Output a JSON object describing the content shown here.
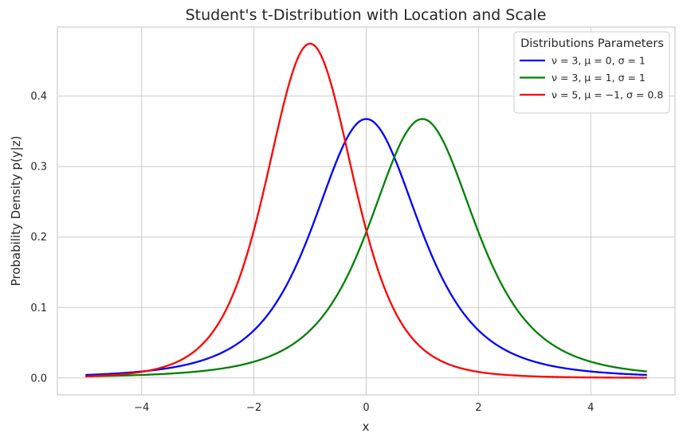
{
  "chart_data": {
    "type": "line",
    "title": "Student's t-Distribution with Location and Scale",
    "xlabel": "x",
    "ylabel": "Probability Density p(y|z)",
    "xlim": [
      -5.5,
      5.5
    ],
    "ylim": [
      -0.024,
      0.498
    ],
    "xticks": [
      -4,
      -2,
      0,
      2,
      4
    ],
    "xtick_labels": [
      "−4",
      "−2",
      "0",
      "2",
      "4"
    ],
    "yticks": [
      0.0,
      0.1,
      0.2,
      0.3,
      0.4
    ],
    "ytick_labels": [
      "0.0",
      "0.1",
      "0.2",
      "0.3",
      "0.4"
    ],
    "grid": true,
    "legend": {
      "title": "Distributions Parameters",
      "placement": "top-right"
    },
    "series": [
      {
        "name": "ν = 3, μ = 0, σ = 1",
        "color": "#0000ff",
        "nu": 3,
        "mu": 0,
        "sigma": 1,
        "x": [
          -5,
          -4,
          -3,
          -2.5,
          -2,
          -1.5,
          -1,
          -0.5,
          0,
          0.5,
          1,
          1.5,
          2,
          2.5,
          3,
          4,
          5
        ],
        "y": [
          0.0042,
          0.0092,
          0.023,
          0.0382,
          0.0675,
          0.1274,
          0.2067,
          0.3215,
          0.3676,
          0.3215,
          0.2067,
          0.1274,
          0.0675,
          0.0382,
          0.023,
          0.0092,
          0.0042
        ]
      },
      {
        "name": "ν = 3, μ = 1, σ = 1",
        "color": "#008000",
        "nu": 3,
        "mu": 1,
        "sigma": 1,
        "x": [
          -5,
          -4,
          -3,
          -2,
          -1.5,
          -1,
          -0.5,
          0,
          0.5,
          1,
          1.5,
          2,
          2.5,
          3,
          3.5,
          4,
          5
        ],
        "y": [
          0.0027,
          0.0042,
          0.0092,
          0.023,
          0.0382,
          0.0675,
          0.1274,
          0.2067,
          0.3215,
          0.3676,
          0.3215,
          0.2067,
          0.1274,
          0.0675,
          0.0382,
          0.023,
          0.0092
        ]
      },
      {
        "name": "ν = 5, μ = −1, σ = 0.8",
        "color": "#ff0000",
        "nu": 5,
        "mu": -1,
        "sigma": 0.8,
        "x": [
          -5,
          -4,
          -3,
          -2,
          -1.5,
          -1,
          -0.5,
          0,
          0.5,
          1,
          2,
          3,
          4,
          5
        ],
        "y": [
          0.002,
          0.0093,
          0.0409,
          0.2184,
          0.3678,
          0.4745,
          0.3678,
          0.2184,
          0.1012,
          0.0409,
          0.0052,
          0.001,
          0.0003,
          0.0001
        ]
      }
    ]
  }
}
